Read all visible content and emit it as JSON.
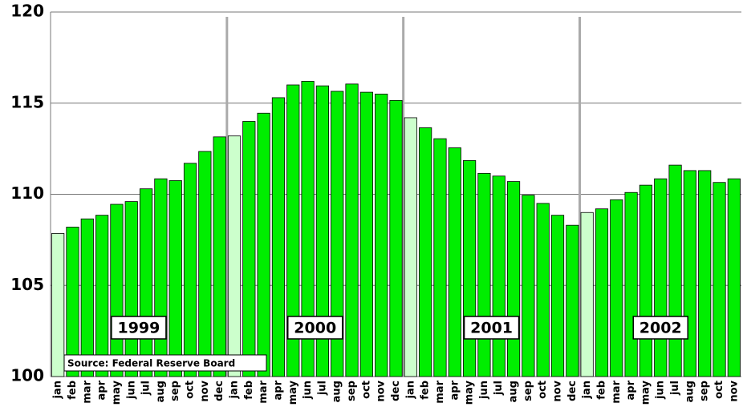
{
  "chart_data": {
    "type": "bar",
    "categories": [
      "jan",
      "feb",
      "mar",
      "apr",
      "may",
      "jun",
      "jul",
      "aug",
      "sep",
      "oct",
      "nov",
      "dec",
      "jan",
      "feb",
      "mar",
      "apr",
      "may",
      "jun",
      "jul",
      "aug",
      "sep",
      "oct",
      "nov",
      "dec",
      "jan",
      "feb",
      "mar",
      "apr",
      "may",
      "jun",
      "jul",
      "aug",
      "sep",
      "oct",
      "nov",
      "dec",
      "jan",
      "feb",
      "mar",
      "apr",
      "may",
      "jun",
      "jul",
      "aug",
      "sep",
      "oct",
      "nov"
    ],
    "values": [
      107.85,
      108.2,
      108.65,
      108.85,
      109.45,
      109.6,
      110.3,
      110.85,
      110.75,
      111.7,
      112.35,
      113.15,
      113.2,
      114.0,
      114.45,
      115.3,
      116.0,
      116.2,
      115.95,
      115.65,
      116.05,
      115.6,
      115.5,
      115.15,
      114.2,
      113.65,
      113.05,
      112.55,
      111.85,
      111.15,
      111.0,
      110.7,
      109.95,
      109.5,
      108.85,
      108.3,
      109.0,
      109.2,
      109.7,
      110.1,
      110.5,
      110.85,
      111.6,
      111.3,
      111.3,
      110.65,
      110.85
    ],
    "colors": [
      "#ccffcc",
      "#00ee00",
      "#00ee00",
      "#00ee00",
      "#00ee00",
      "#00ee00",
      "#00ee00",
      "#00ee00",
      "#00ee00",
      "#00ee00",
      "#00ee00",
      "#00ee00",
      "#ccffcc",
      "#00ee00",
      "#00ee00",
      "#00ee00",
      "#00ee00",
      "#00ee00",
      "#00ee00",
      "#00ee00",
      "#00ee00",
      "#00ee00",
      "#00ee00",
      "#00ee00",
      "#ccffcc",
      "#00ee00",
      "#00ee00",
      "#00ee00",
      "#00ee00",
      "#00ee00",
      "#00ee00",
      "#00ee00",
      "#00ee00",
      "#00ee00",
      "#00ee00",
      "#00ee00",
      "#ccffcc",
      "#00ee00",
      "#00ee00",
      "#00ee00",
      "#00ee00",
      "#00ee00",
      "#00ee00",
      "#00ee00",
      "#00ee00",
      "#00ee00",
      "#00ee00"
    ],
    "year_labels": [
      "1999",
      "2000",
      "2001",
      "2002"
    ],
    "source": "Source: Federal Reserve Board",
    "ylim": [
      100,
      120
    ],
    "yticks": [
      100,
      105,
      110,
      115,
      120
    ],
    "grid": true
  }
}
